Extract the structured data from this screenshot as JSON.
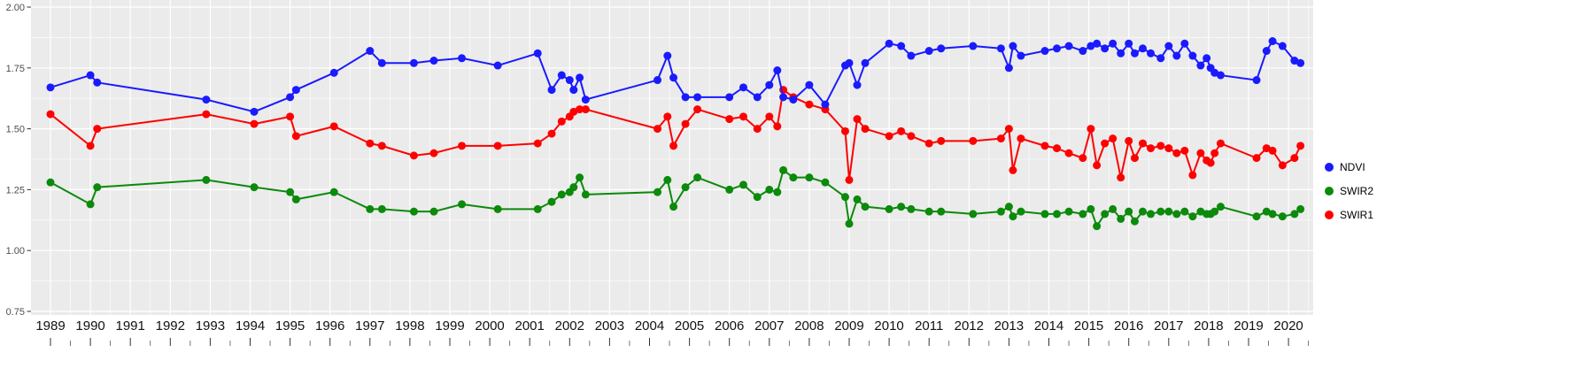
{
  "chart_data": {
    "type": "line",
    "title": "",
    "xlabel": "",
    "ylabel": "",
    "legend_position": "right",
    "panel_bg": "#ebebeb",
    "grid_color": "#ffffff",
    "ylim": [
      0.75,
      2.0
    ],
    "xlim": [
      1988.55,
      2020.8
    ],
    "y_ticks": [
      {
        "value": 2.0,
        "label": "2.00"
      },
      {
        "value": 1.75,
        "label": "1.75"
      },
      {
        "value": 1.5,
        "label": "1.50"
      },
      {
        "value": 1.25,
        "label": "1.25"
      },
      {
        "value": 1.0,
        "label": "1.00"
      },
      {
        "value": 0.75,
        "label": "0.75"
      }
    ],
    "x_ticks": [
      1989,
      1990,
      1991,
      1992,
      1993,
      1994,
      1995,
      1996,
      1997,
      1998,
      1999,
      2000,
      2001,
      2002,
      2003,
      2004,
      2005,
      2006,
      2007,
      2008,
      2009,
      2010,
      2011,
      2012,
      2013,
      2014,
      2015,
      2016,
      2017,
      2018,
      2019,
      2020
    ],
    "x": [
      1989.0,
      1990.0,
      1990.17,
      1992.9,
      1994.1,
      1995.0,
      1995.15,
      1996.1,
      1997.0,
      1997.3,
      1998.1,
      1998.6,
      1999.3,
      2000.2,
      2001.2,
      2001.55,
      2001.8,
      2002.0,
      2002.1,
      2002.25,
      2002.4,
      2004.2,
      2004.45,
      2004.6,
      2004.9,
      2005.2,
      2006.0,
      2006.35,
      2006.7,
      2007.0,
      2007.2,
      2007.35,
      2007.6,
      2008.0,
      2008.4,
      2008.9,
      2009.0,
      2009.2,
      2009.4,
      2010.0,
      2010.3,
      2010.55,
      2011.0,
      2011.3,
      2012.1,
      2012.8,
      2013.0,
      2013.1,
      2013.3,
      2013.9,
      2014.2,
      2014.5,
      2014.85,
      2015.05,
      2015.2,
      2015.4,
      2015.6,
      2015.8,
      2016.0,
      2016.15,
      2016.35,
      2016.55,
      2016.8,
      2017.0,
      2017.2,
      2017.4,
      2017.6,
      2017.8,
      2017.95,
      2018.05,
      2018.15,
      2018.3,
      2019.2,
      2019.45,
      2019.6,
      2019.85,
      2020.15,
      2020.3
    ],
    "series": [
      {
        "name": "NDVI",
        "color": "#1a1aff",
        "values": [
          1.67,
          1.72,
          1.69,
          1.62,
          1.57,
          1.63,
          1.66,
          1.73,
          1.82,
          1.77,
          1.77,
          1.78,
          1.79,
          1.76,
          1.81,
          1.66,
          1.72,
          1.7,
          1.66,
          1.71,
          1.62,
          1.7,
          1.8,
          1.71,
          1.63,
          1.63,
          1.63,
          1.67,
          1.63,
          1.68,
          1.74,
          1.63,
          1.62,
          1.68,
          1.6,
          1.76,
          1.77,
          1.68,
          1.77,
          1.85,
          1.84,
          1.8,
          1.82,
          1.83,
          1.84,
          1.83,
          1.75,
          1.84,
          1.8,
          1.82,
          1.83,
          1.84,
          1.82,
          1.84,
          1.85,
          1.83,
          1.85,
          1.81,
          1.85,
          1.81,
          1.83,
          1.81,
          1.79,
          1.84,
          1.8,
          1.85,
          1.8,
          1.76,
          1.79,
          1.75,
          1.73,
          1.72,
          1.7,
          1.82,
          1.86,
          1.84,
          1.78,
          1.77
        ]
      },
      {
        "name": "SWIR2",
        "color": "#0b8a0b",
        "values": [
          1.28,
          1.19,
          1.26,
          1.29,
          1.26,
          1.24,
          1.21,
          1.24,
          1.17,
          1.17,
          1.16,
          1.16,
          1.19,
          1.17,
          1.17,
          1.2,
          1.23,
          1.24,
          1.26,
          1.3,
          1.23,
          1.24,
          1.29,
          1.18,
          1.26,
          1.3,
          1.25,
          1.27,
          1.22,
          1.25,
          1.24,
          1.33,
          1.3,
          1.3,
          1.28,
          1.22,
          1.11,
          1.21,
          1.18,
          1.17,
          1.18,
          1.17,
          1.16,
          1.16,
          1.15,
          1.16,
          1.18,
          1.14,
          1.16,
          1.15,
          1.15,
          1.16,
          1.15,
          1.17,
          1.1,
          1.15,
          1.17,
          1.13,
          1.16,
          1.12,
          1.16,
          1.15,
          1.16,
          1.16,
          1.15,
          1.16,
          1.14,
          1.16,
          1.15,
          1.15,
          1.16,
          1.18,
          1.14,
          1.16,
          1.15,
          1.14,
          1.15,
          1.17
        ]
      },
      {
        "name": "SWIR1",
        "color": "#ff0000",
        "values": [
          1.56,
          1.43,
          1.5,
          1.56,
          1.52,
          1.55,
          1.47,
          1.51,
          1.44,
          1.43,
          1.39,
          1.4,
          1.43,
          1.43,
          1.44,
          1.48,
          1.53,
          1.55,
          1.57,
          1.58,
          1.58,
          1.5,
          1.55,
          1.43,
          1.52,
          1.58,
          1.54,
          1.55,
          1.5,
          1.55,
          1.51,
          1.66,
          1.63,
          1.6,
          1.58,
          1.49,
          1.29,
          1.54,
          1.5,
          1.47,
          1.49,
          1.47,
          1.44,
          1.45,
          1.45,
          1.46,
          1.5,
          1.33,
          1.46,
          1.43,
          1.42,
          1.4,
          1.38,
          1.5,
          1.35,
          1.44,
          1.46,
          1.3,
          1.45,
          1.38,
          1.44,
          1.42,
          1.43,
          1.42,
          1.4,
          1.41,
          1.31,
          1.4,
          1.37,
          1.36,
          1.4,
          1.44,
          1.38,
          1.42,
          1.41,
          1.35,
          1.38,
          1.43
        ]
      }
    ],
    "legend": [
      {
        "label": "NDVI",
        "color": "#1a1aff"
      },
      {
        "label": "SWIR2",
        "color": "#0b8a0b"
      },
      {
        "label": "SWIR1",
        "color": "#ff0000"
      }
    ]
  }
}
